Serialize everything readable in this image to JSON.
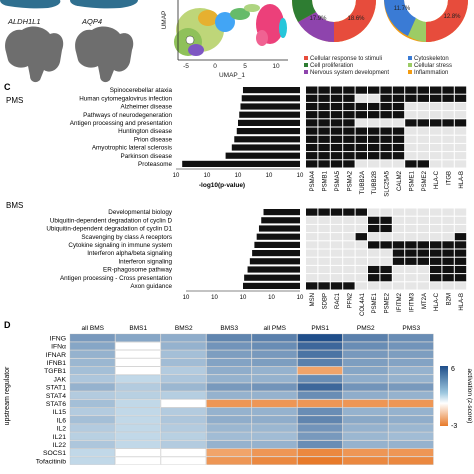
{
  "panels": {
    "top": {
      "gene_labels": [
        "ALDH1L1",
        "AQP4"
      ],
      "umap_xlabel": "UMAP_1",
      "umap_ylabel": "UMAP",
      "umap_xticks": [
        "-5",
        "0",
        "5",
        "10"
      ],
      "donut_pct": [
        "17.9%",
        "18.6%",
        "11.7%",
        "12.8%"
      ],
      "legend_left": [
        "Cellular response to stimuli",
        "Cell proliferation",
        "Nervous system development"
      ],
      "legend_right": [
        "Cytoskeleton",
        "Cellular stress",
        "Inflammation"
      ],
      "legend_colors": {
        "Cellular response to stimuli": "#e74c3c",
        "Cell proliferation": "#2e7d32",
        "Nervous system development": "#8e44ad",
        "Cytoskeleton": "#3a7bd5",
        "Cellular stress": "#9ccc65",
        "Inflammation": "#f39c12"
      }
    },
    "C": {
      "letter": "C",
      "pms": {
        "label": "PMS",
        "terms": [
          "Spinocerebellar ataxia",
          "Human cytomegalovirus infection",
          "Alzheimer disease",
          "Pathways of neurodegeneration",
          "Antigen processing and presentation",
          "Huntington disease",
          "Prion disease",
          "Amyotrophic lateral sclerosis",
          "Parkinson disease",
          "Proteasome"
        ],
        "values": [
          4.6,
          4.7,
          4.8,
          4.9,
          5.0,
          5.1,
          5.3,
          5.5,
          6.0,
          9.5
        ],
        "xticks": [
          "10",
          "10",
          "10",
          "10",
          "10"
        ],
        "xlabel": "-log10(p-value)",
        "genes": [
          "PSMA4",
          "PSMB1",
          "PSMA5",
          "PSMA2",
          "TUBB2A",
          "TUBB2B",
          "SLC25A5",
          "CALM2",
          "PSME1",
          "PSME2",
          "HLA-C",
          "ITGB",
          "HLA-B"
        ],
        "matrix": [
          [
            1,
            1,
            1,
            1,
            1,
            1,
            1,
            1,
            1,
            1,
            1,
            1,
            1
          ],
          [
            1,
            1,
            1,
            1,
            0,
            0,
            1,
            1,
            1,
            1,
            1,
            1,
            1
          ],
          [
            1,
            1,
            1,
            1,
            1,
            1,
            1,
            1,
            0,
            0,
            0,
            0,
            0
          ],
          [
            1,
            1,
            1,
            1,
            1,
            1,
            1,
            1,
            0,
            0,
            0,
            0,
            0
          ],
          [
            1,
            1,
            1,
            1,
            0,
            0,
            0,
            0,
            1,
            1,
            1,
            1,
            1
          ],
          [
            1,
            1,
            1,
            1,
            1,
            1,
            1,
            1,
            0,
            0,
            0,
            0,
            0
          ],
          [
            1,
            1,
            1,
            1,
            1,
            1,
            1,
            1,
            0,
            0,
            0,
            0,
            0
          ],
          [
            1,
            1,
            1,
            1,
            1,
            1,
            1,
            1,
            0,
            0,
            0,
            0,
            0
          ],
          [
            1,
            1,
            1,
            1,
            1,
            1,
            1,
            1,
            0,
            0,
            0,
            0,
            0
          ],
          [
            1,
            1,
            1,
            1,
            0,
            0,
            0,
            0,
            1,
            1,
            0,
            0,
            0
          ]
        ]
      },
      "bms": {
        "label": "BMS",
        "terms": [
          "Developmental biology",
          "Ubiquitin-dependent degradation of cyclin D",
          "Ubiquitin-dependent degradation of cyclin D1",
          "Scavenging by class A receptors",
          "Cytokine signaling in immune system",
          "Interferon alpha/beta signaling",
          "Interferon signaling",
          "ER-phagosome pathway",
          "Antigen processing - Cross presentation",
          "Axon guidance"
        ],
        "values": [
          3.2,
          3.4,
          3.6,
          3.8,
          4.0,
          4.2,
          4.4,
          4.6,
          4.9,
          5.0
        ],
        "xticks": [
          "10",
          "10",
          "10",
          "10",
          "10"
        ],
        "xlabel": "-log10(p-value)",
        "genes": [
          "MSN",
          "SDBP",
          "RAC1",
          "PFN2",
          "COL4A1",
          "PSME1",
          "PSME2",
          "IFITM2",
          "IFITM3",
          "MT2A",
          "HLA-C",
          "B2M",
          "HLA-B"
        ],
        "matrix": [
          [
            1,
            1,
            1,
            1,
            1,
            0,
            0,
            0,
            0,
            0,
            0,
            0,
            0
          ],
          [
            0,
            0,
            0,
            0,
            0,
            1,
            1,
            0,
            0,
            0,
            0,
            0,
            0
          ],
          [
            0,
            0,
            0,
            0,
            0,
            1,
            1,
            0,
            0,
            0,
            0,
            0,
            0
          ],
          [
            0,
            0,
            0,
            0,
            1,
            0,
            0,
            0,
            0,
            0,
            0,
            0,
            1
          ],
          [
            0,
            0,
            0,
            0,
            0,
            1,
            1,
            1,
            1,
            1,
            1,
            1,
            1
          ],
          [
            0,
            0,
            0,
            0,
            0,
            0,
            0,
            1,
            1,
            1,
            1,
            1,
            1
          ],
          [
            0,
            0,
            0,
            0,
            0,
            0,
            0,
            1,
            1,
            1,
            1,
            1,
            1
          ],
          [
            0,
            0,
            0,
            0,
            0,
            1,
            1,
            0,
            0,
            0,
            1,
            1,
            1
          ],
          [
            0,
            0,
            0,
            0,
            0,
            1,
            1,
            0,
            0,
            0,
            1,
            1,
            1
          ],
          [
            1,
            1,
            1,
            1,
            0,
            0,
            0,
            0,
            0,
            0,
            0,
            0,
            0
          ]
        ]
      }
    },
    "D": {
      "letter": "D",
      "columns": [
        "all BMS",
        "BMS1",
        "BMS2",
        "BMS3",
        "all PMS",
        "PMS1",
        "PMS2",
        "PMS3"
      ],
      "rows": [
        "IFNG",
        "IFNα",
        "IFNAR",
        "IFNB1",
        "TGFB1",
        "JAK",
        "STAT1",
        "STAT4",
        "STAT6",
        "IL15",
        "IL6",
        "IL2",
        "IL21",
        "IL22",
        "SOCS1",
        "Tofacitinib"
      ],
      "ylabel": "upstream regulator",
      "colorbar_label": "activation (z-score)",
      "colorbar_ticks": [
        "6",
        "-3"
      ],
      "z": [
        [
          3.0,
          2.5,
          2.2,
          3.8,
          4.0,
          6.0,
          4.0,
          3.5
        ],
        [
          2.5,
          0,
          2.0,
          3.2,
          3.5,
          5.0,
          3.5,
          3.2
        ],
        [
          2.0,
          0,
          1.5,
          2.8,
          3.0,
          4.5,
          3.0,
          2.8
        ],
        [
          1.8,
          0,
          1.6,
          2.6,
          2.8,
          4.0,
          2.8,
          2.6
        ],
        [
          1.5,
          0,
          1.0,
          2.2,
          2.0,
          -1.5,
          2.5,
          2.0
        ],
        [
          1.2,
          0.5,
          1.2,
          2.0,
          2.0,
          3.5,
          2.2,
          2.0
        ],
        [
          2.0,
          1.0,
          1.8,
          3.0,
          3.2,
          5.0,
          3.2,
          3.0
        ],
        [
          1.0,
          0.8,
          0.9,
          2.0,
          2.0,
          3.5,
          2.2,
          2.0
        ],
        [
          1.5,
          0.5,
          0,
          -2.0,
          -2.0,
          -2.0,
          -2.0,
          -2.0
        ],
        [
          1.0,
          0.5,
          1.0,
          2.0,
          2.0,
          3.5,
          2.0,
          2.0
        ],
        [
          1.5,
          0.5,
          1.2,
          2.2,
          2.2,
          3.8,
          2.4,
          2.2
        ],
        [
          1.0,
          0.5,
          1.0,
          1.8,
          1.8,
          3.2,
          2.0,
          1.8
        ],
        [
          0.8,
          0.5,
          0.8,
          1.6,
          1.6,
          3.0,
          1.8,
          1.6
        ],
        [
          1.2,
          0.5,
          1.0,
          2.0,
          2.0,
          3.5,
          2.0,
          2.0
        ],
        [
          0.5,
          0,
          0,
          -1.5,
          -2.0,
          -2.5,
          -2.0,
          -2.0
        ],
        [
          0.5,
          0,
          0,
          -2.0,
          -2.5,
          -3.0,
          -2.5,
          -2.5
        ]
      ]
    }
  }
}
